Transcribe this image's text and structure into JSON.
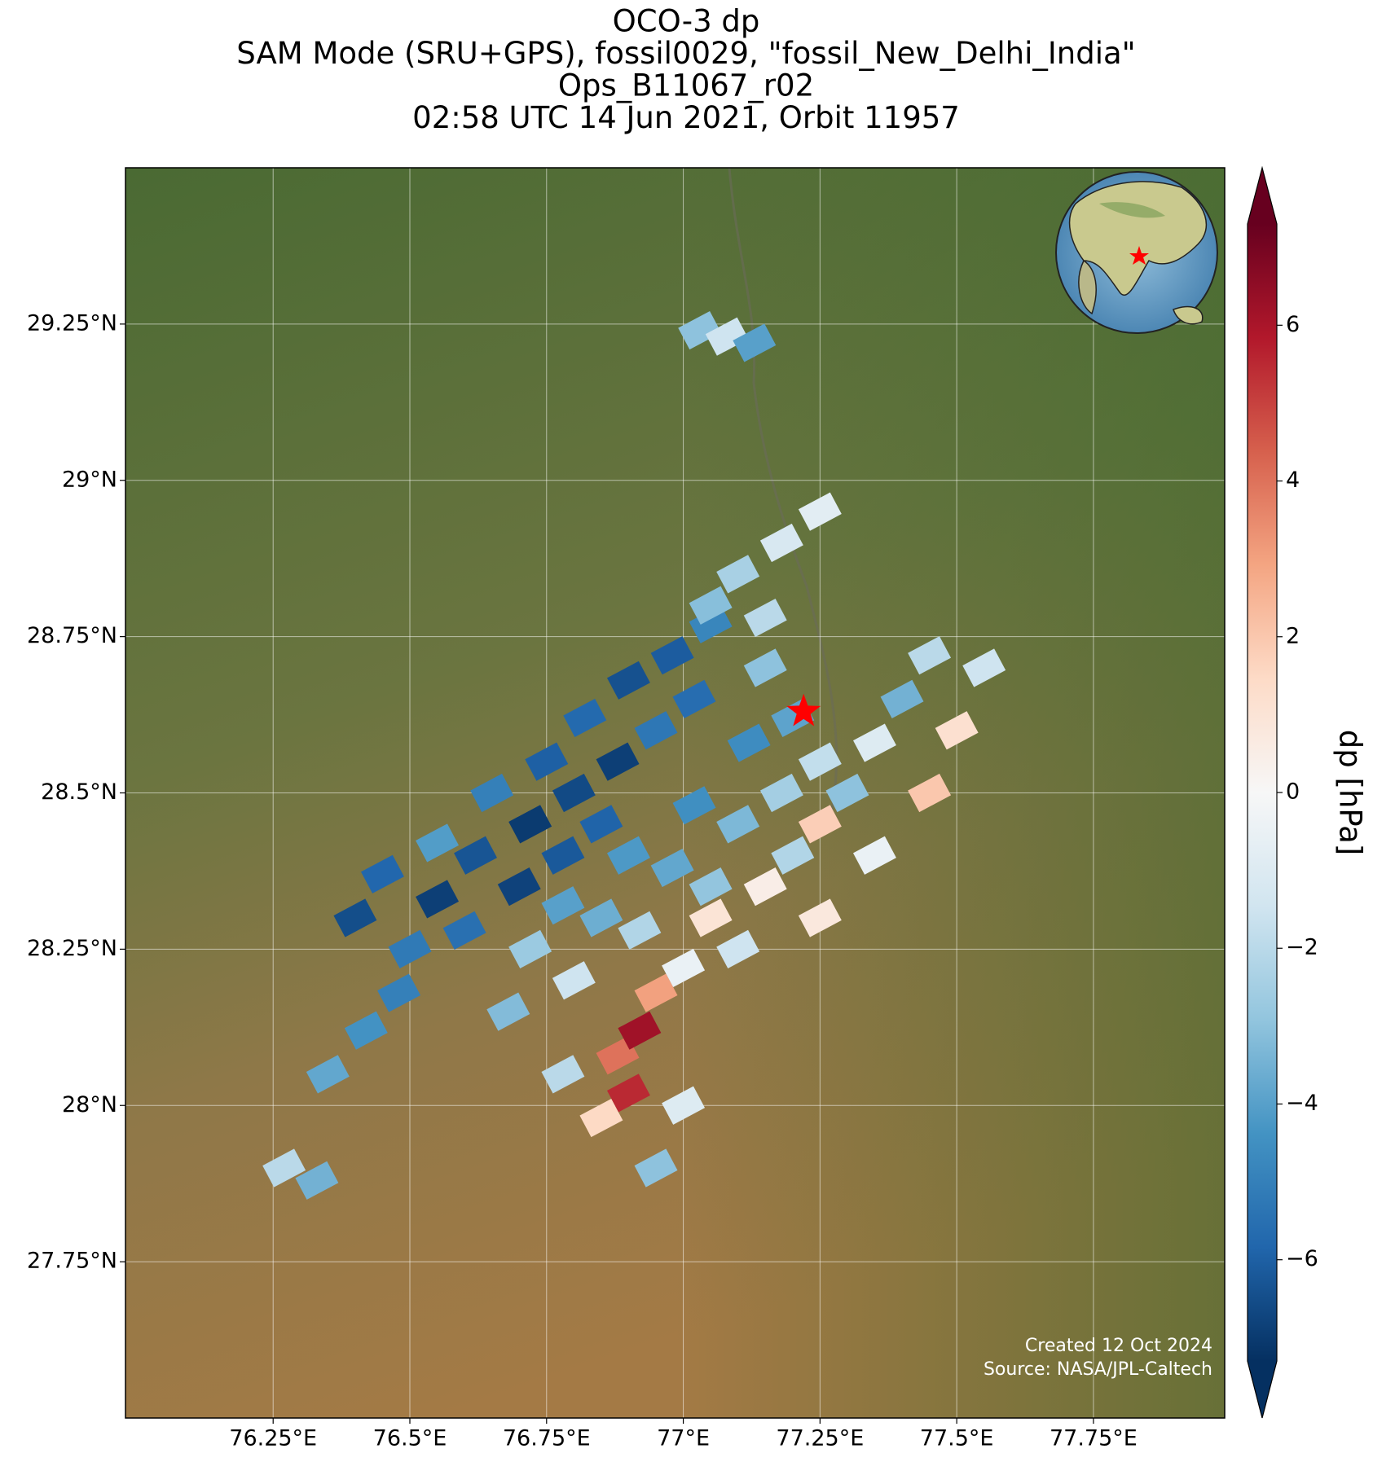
{
  "chart_data": {
    "type": "scatter",
    "title": [
      "OCO-3 dp",
      "SAM Mode (SRU+GPS), fossil0029, \"fossil_New_Delhi_India\"",
      "Ops_B11067_r02",
      "02:58 UTC 14 Jun 2021, Orbit 11957"
    ],
    "xlim": [
      75.98,
      77.99
    ],
    "ylim": [
      27.5,
      29.5
    ],
    "xticks": [
      {
        "value": 76.25,
        "label": "76.25°E"
      },
      {
        "value": 76.5,
        "label": "76.5°E"
      },
      {
        "value": 76.75,
        "label": "76.75°E"
      },
      {
        "value": 77,
        "label": "77°E"
      },
      {
        "value": 77.25,
        "label": "77.25°E"
      },
      {
        "value": 77.5,
        "label": "77.5°E"
      },
      {
        "value": 77.75,
        "label": "77.75°E"
      }
    ],
    "yticks": [
      {
        "value": 27.75,
        "label": "27.75°N"
      },
      {
        "value": 28,
        "label": "28°N"
      },
      {
        "value": 28.25,
        "label": "28.25°N"
      },
      {
        "value": 28.5,
        "label": "28.5°N"
      },
      {
        "value": 28.75,
        "label": "28.75°N"
      },
      {
        "value": 29,
        "label": "29°N"
      },
      {
        "value": 29.25,
        "label": "29.25°N"
      }
    ],
    "grid": true,
    "series": [
      {
        "x": [
          76.4,
          76.45,
          76.5,
          76.55,
          76.55,
          76.6,
          76.62,
          76.65,
          76.7,
          76.72,
          76.75,
          76.78,
          76.8,
          76.82,
          76.85,
          76.88,
          76.9,
          76.95,
          76.98,
          77.02,
          77.05,
          76.48,
          76.42,
          76.35,
          76.27,
          76.33,
          76.68,
          76.72,
          76.78,
          76.8,
          76.85,
          76.9,
          76.92,
          76.98,
          77.02,
          77.05,
          77.1,
          77.12,
          77.15,
          77.18,
          77.2,
          77.25,
          77.1,
          77.18,
          77.25,
          77.05,
          77.15,
          76.78,
          76.85,
          76.88,
          76.92,
          76.9,
          76.95,
          77.0,
          77.05,
          77.1,
          77.15,
          77.2,
          77.25,
          77.3,
          77.35,
          77.4,
          77.45,
          77.5,
          77.55,
          77.45,
          77.35,
          77.25,
          76.95,
          77.0,
          77.03,
          77.08,
          77.13
        ],
        "y": [
          28.3,
          28.37,
          28.25,
          28.33,
          28.42,
          28.28,
          28.4,
          28.5,
          28.35,
          28.45,
          28.55,
          28.4,
          28.5,
          28.62,
          28.45,
          28.55,
          28.68,
          28.6,
          28.72,
          28.65,
          28.77,
          28.18,
          28.12,
          28.05,
          27.9,
          27.88,
          28.15,
          28.25,
          28.32,
          28.2,
          28.3,
          28.4,
          28.28,
          28.38,
          28.48,
          28.35,
          28.45,
          28.58,
          28.7,
          28.5,
          28.62,
          28.55,
          28.85,
          28.9,
          28.95,
          28.8,
          28.78,
          28.05,
          27.98,
          28.08,
          28.12,
          28.02,
          28.18,
          28.22,
          28.3,
          28.25,
          28.35,
          28.4,
          28.45,
          28.5,
          28.58,
          28.65,
          28.72,
          28.6,
          28.7,
          28.5,
          28.4,
          28.3,
          27.9,
          28.0,
          29.24,
          29.23,
          29.22
        ],
        "values": [
          -6.5,
          -5.8,
          -5.2,
          -6.9,
          -4.1,
          -5.5,
          -6.3,
          -5.0,
          -6.8,
          -7.0,
          -6.0,
          -6.2,
          -6.6,
          -5.7,
          -5.9,
          -6.9,
          -6.4,
          -5.3,
          -6.1,
          -5.6,
          -4.8,
          -5.0,
          -4.4,
          -3.8,
          -2.0,
          -3.5,
          -3.2,
          -2.7,
          -4.0,
          -1.5,
          -3.6,
          -4.2,
          -2.2,
          -3.8,
          -4.5,
          -2.9,
          -3.3,
          -4.6,
          -3.0,
          -2.5,
          -3.9,
          -1.8,
          -2.4,
          -1.2,
          -0.8,
          -3.1,
          -2.0,
          -2.0,
          1.5,
          4.0,
          6.2,
          5.5,
          3.0,
          -0.5,
          1.0,
          -1.5,
          0.5,
          -2.2,
          1.8,
          -3.0,
          -1.0,
          -3.5,
          -2.0,
          1.2,
          -1.5,
          2.0,
          -0.5,
          0.8,
          -3.0,
          -1.0,
          -3.0,
          -1.5,
          -4.0
        ]
      }
    ],
    "target_site": {
      "x": 77.22,
      "y": 28.63,
      "color": "#ff0000"
    },
    "colorbar": {
      "label": "dp [hPa]",
      "lim": [
        -7.3,
        7.3
      ],
      "extend": "both",
      "colormap": [
        "#053061",
        "#2166ac",
        "#4393c3",
        "#92c5de",
        "#d1e5f0",
        "#f7f7f7",
        "#fddbc7",
        "#f4a582",
        "#d6604d",
        "#b2182b",
        "#67001f"
      ],
      "ticks": [
        {
          "value": -6,
          "label": "−6"
        },
        {
          "value": -4,
          "label": "−4"
        },
        {
          "value": -2,
          "label": "−2"
        },
        0,
        2,
        4,
        6
      ]
    },
    "credits": [
      "Created 12 Oct 2024",
      "Source: NASA/JPL-Caltech"
    ]
  }
}
